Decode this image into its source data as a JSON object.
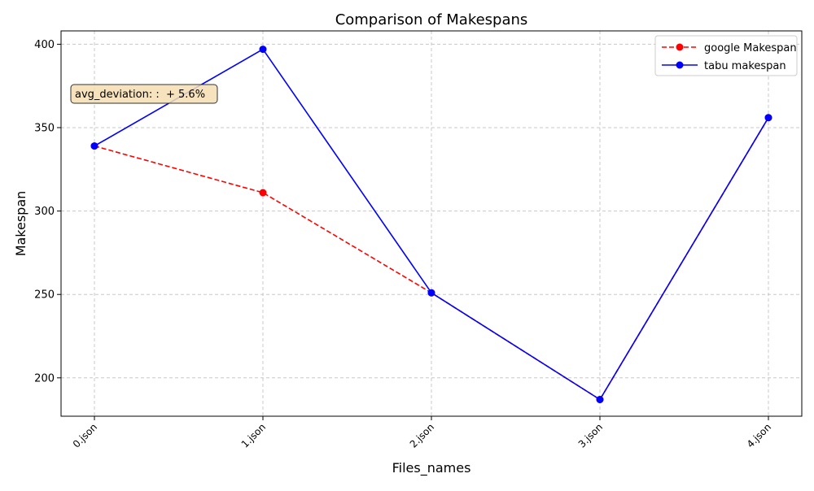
{
  "chart_data": {
    "type": "line",
    "title": "Comparison of Makespans",
    "xlabel": "Files_names",
    "ylabel": "Makespan",
    "categories": [
      "0.json",
      "1.json",
      "2.json",
      "3.json",
      "4.json"
    ],
    "ylim": [
      177,
      408
    ],
    "yticks": [
      200,
      250,
      300,
      350,
      400
    ],
    "grid": true,
    "legend_position": "top-right",
    "series": [
      {
        "name": "google Makespan",
        "values": [
          339,
          311,
          251,
          187,
          356
        ],
        "color": "#ff0000",
        "line_style": "dashed",
        "marker": "circle"
      },
      {
        "name": "tabu makespan",
        "values": [
          339,
          397,
          251,
          187,
          356
        ],
        "color": "#0000ff",
        "line_style": "solid",
        "marker": "circle"
      }
    ],
    "annotation": {
      "text": "avg_deviation: :  + 5.6%",
      "background": "#f5deb3"
    }
  }
}
